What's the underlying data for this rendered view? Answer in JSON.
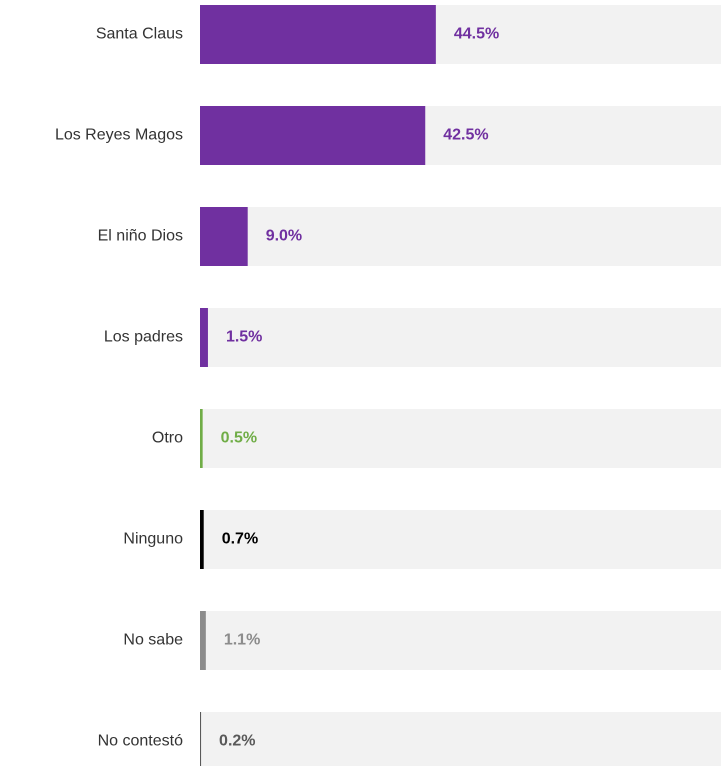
{
  "chart_data": {
    "type": "bar",
    "orientation": "horizontal",
    "categories": [
      "Santa Claus",
      "Los Reyes Magos",
      "El niño Dios",
      "Los padres",
      "Otro",
      "Ninguno",
      "No sabe",
      "No contestó"
    ],
    "values": [
      44.5,
      42.5,
      9.0,
      1.5,
      0.5,
      0.7,
      1.1,
      0.2
    ],
    "value_labels": [
      "44.5%",
      "42.5%",
      "9.0%",
      "1.5%",
      "0.5%",
      "0.7%",
      "1.1%",
      "0.2%"
    ],
    "colors": [
      "#7030a0",
      "#7030a0",
      "#7030a0",
      "#7030a0",
      "#70ad47",
      "#000000",
      "#8c8c8c",
      "#595959"
    ],
    "xlim": [
      0,
      100
    ]
  }
}
